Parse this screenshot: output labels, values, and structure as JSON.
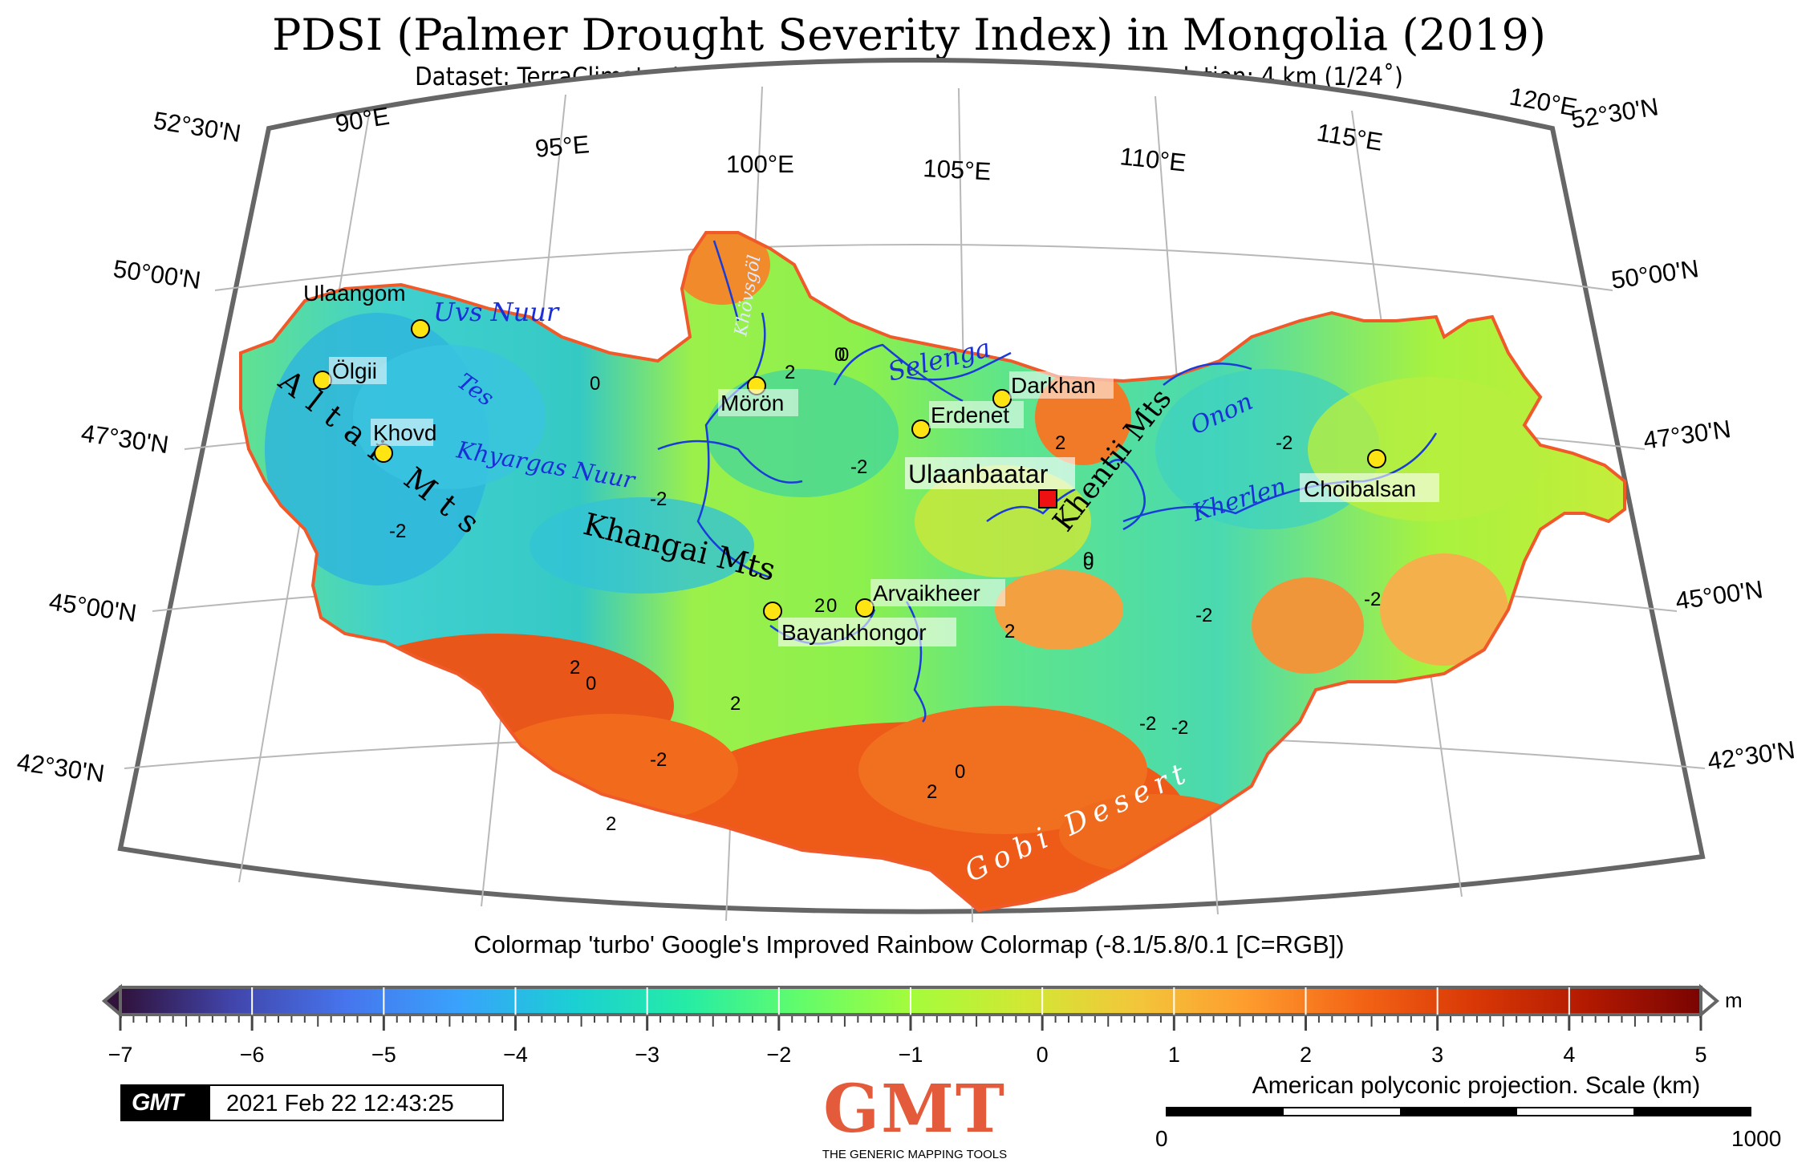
{
  "title": "PDSI (Palmer Drought Severity Index) in Mongolia (2019)",
  "subtitle": "Dataset: TerraClimate. Input Data WorldClim, CRUTS4.0. Spatial resolution: 4 km (1/24˚)",
  "map": {
    "lon_labels": [
      "90°E",
      "95°E",
      "100°E",
      "105°E",
      "110°E",
      "115°E",
      "120°E"
    ],
    "lat_labels_left": [
      "52°30'N",
      "50°00'N",
      "47°30'N",
      "45°00'N",
      "42°30'N"
    ],
    "lat_labels_right": [
      "52°30'N",
      "50°00'N",
      "47°30'N",
      "45°00'N",
      "42°30'N"
    ],
    "cities": [
      {
        "name": "Ulaangom",
        "type": "circle"
      },
      {
        "name": "Ölgii",
        "type": "circle"
      },
      {
        "name": "Khovd",
        "type": "circle"
      },
      {
        "name": "Mörön",
        "type": "circle"
      },
      {
        "name": "Erdenet",
        "type": "circle"
      },
      {
        "name": "Darkhan",
        "type": "circle"
      },
      {
        "name": "Choibalsan",
        "type": "circle"
      },
      {
        "name": "Arvaikheer",
        "type": "circle"
      },
      {
        "name": "Bayankhongor",
        "type": "circle"
      },
      {
        "name": "Ulaanbaatar",
        "type": "square"
      }
    ],
    "features": [
      {
        "name": "Uvs Nuur",
        "kind": "water"
      },
      {
        "name": "Tes",
        "kind": "water"
      },
      {
        "name": "Khyargas Nuur",
        "kind": "water"
      },
      {
        "name": "Selenga",
        "kind": "water"
      },
      {
        "name": "Onon",
        "kind": "water"
      },
      {
        "name": "Kherlen",
        "kind": "water"
      },
      {
        "name": "Khövsgöl",
        "kind": "water"
      },
      {
        "name": "Altai Mts",
        "kind": "mountain"
      },
      {
        "name": "Khangai Mts",
        "kind": "mountain"
      },
      {
        "name": "Khentii Mts",
        "kind": "mountain"
      },
      {
        "name": "Gobi Desert",
        "kind": "desert"
      }
    ],
    "contour_labels": [
      "0",
      "0",
      "2",
      "-2",
      "-2",
      "2",
      "-2",
      "2",
      "2",
      "0",
      "2",
      "0",
      "-2",
      "-2",
      "-2",
      "-2",
      "2",
      "0",
      "2",
      "2",
      "0",
      "0",
      "-2",
      "-2",
      "0"
    ]
  },
  "colorbar": {
    "title": "Colormap 'turbo' Google's Improved Rainbow Colormap (-8.1/5.8/0.1 [C=RGB])",
    "unit": "m",
    "ticks": [
      "−7",
      "−6",
      "−5",
      "−4",
      "−3",
      "−2",
      "−1",
      "0",
      "1",
      "2",
      "3",
      "4",
      "5"
    ],
    "colors": [
      "#30123b",
      "#4145ab",
      "#4675ed",
      "#39a2fc",
      "#1bcfd4",
      "#24eca6",
      "#61fc6c",
      "#a4fc3b",
      "#d1e834",
      "#f3c63a",
      "#fe9b2d",
      "#f36315",
      "#d93806",
      "#b11901",
      "#7a0402"
    ]
  },
  "footer": {
    "gmt_badge": "GMT",
    "timestamp": "2021 Feb 22 12:43:25",
    "logo_text": "GMT",
    "logo_subtitle": "THE GENERIC MAPPING TOOLS",
    "scale_title": "American polyconic projection. Scale (km)",
    "scale_min": "0",
    "scale_max": "1000"
  }
}
